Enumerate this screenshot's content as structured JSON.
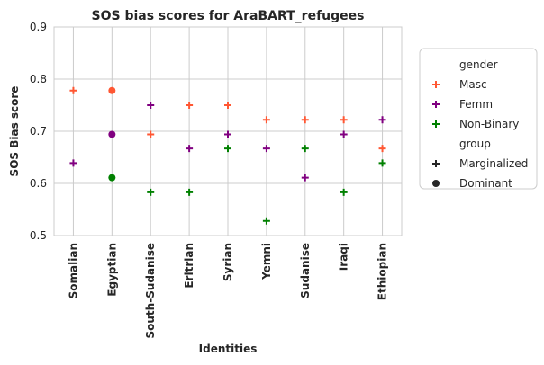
{
  "chart_data": {
    "type": "scatter",
    "title": "SOS bias scores for AraBART_refugees",
    "xlabel": "Identities",
    "ylabel": "SOS Bias score",
    "ylim": [
      0.5,
      0.9
    ],
    "yticks": [
      0.5,
      0.6,
      0.7,
      0.8,
      0.9
    ],
    "grid": true,
    "legend_position": "right",
    "categories": [
      "Somalian",
      "Egyptian",
      "South-Sudanise",
      "Eritrian",
      "Syrian",
      "Yemni",
      "Sudanise",
      "Iraqi",
      "Ethiopian"
    ],
    "hue_title": "gender",
    "style_title": "group",
    "series": [
      {
        "name": "Masc",
        "color": "#ff5733",
        "values": [
          0.778,
          0.778,
          0.694,
          0.75,
          0.75,
          0.722,
          0.722,
          0.722,
          0.667
        ],
        "markers": [
          "plus",
          "circle",
          "plus",
          "plus",
          "plus",
          "plus",
          "plus",
          "plus",
          "plus"
        ]
      },
      {
        "name": "Femm",
        "color": "#800080",
        "values": [
          0.639,
          0.694,
          0.75,
          0.667,
          0.694,
          0.667,
          0.611,
          0.694,
          0.722
        ],
        "markers": [
          "plus",
          "circle",
          "plus",
          "plus",
          "plus",
          "plus",
          "plus",
          "plus",
          "plus"
        ]
      },
      {
        "name": "Non-Binary",
        "color": "#008000",
        "values": [
          null,
          0.611,
          0.583,
          0.583,
          0.667,
          0.528,
          0.667,
          0.583,
          0.639
        ],
        "markers": [
          "plus",
          "circle",
          "plus",
          "plus",
          "plus",
          "plus",
          "plus",
          "plus",
          "plus"
        ]
      }
    ],
    "styles": [
      {
        "name": "Marginalized",
        "marker": "plus"
      },
      {
        "name": "Dominant",
        "marker": "circle"
      }
    ]
  }
}
